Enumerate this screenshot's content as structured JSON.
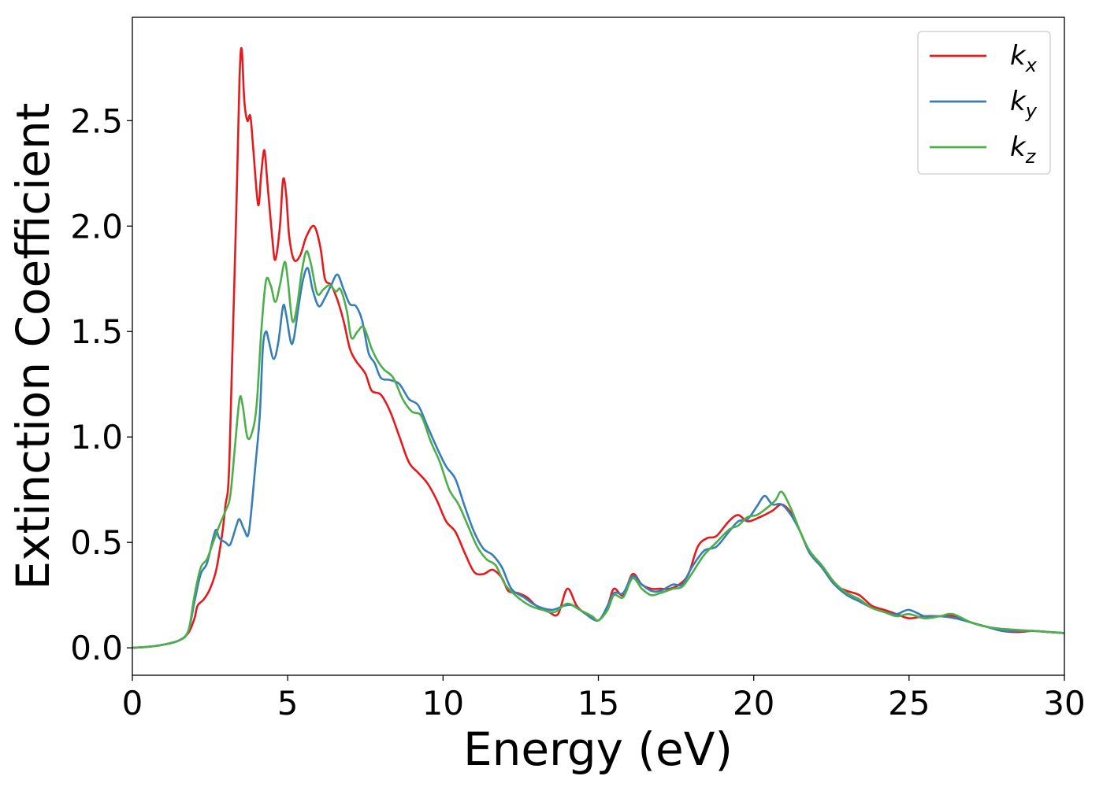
{
  "chart_data": {
    "type": "line",
    "xlabel": "Energy (eV)",
    "ylabel": "Extinction Coefficient",
    "xlim": [
      0,
      30
    ],
    "ylim": [
      -0.13,
      2.99
    ],
    "xticks": [
      "0",
      "5",
      "10",
      "15",
      "20",
      "25",
      "30"
    ],
    "yticks": [
      "0.0",
      "0.5",
      "1.0",
      "1.5",
      "2.0",
      "2.5"
    ],
    "grid": false,
    "legend_position": "top-right",
    "series": [
      {
        "name": "k_x",
        "legend_main": "k",
        "legend_sub": "x",
        "color": "#e41a1c",
        "points": [
          [
            0,
            0
          ],
          [
            0.5,
            0.005
          ],
          [
            1,
            0.015
          ],
          [
            1.5,
            0.035
          ],
          [
            1.8,
            0.07
          ],
          [
            2.0,
            0.14
          ],
          [
            2.1,
            0.2
          ],
          [
            2.3,
            0.23
          ],
          [
            2.5,
            0.28
          ],
          [
            2.7,
            0.37
          ],
          [
            2.9,
            0.55
          ],
          [
            3.0,
            0.68
          ],
          [
            3.1,
            0.8
          ],
          [
            3.2,
            1.3
          ],
          [
            3.35,
            2.1
          ],
          [
            3.45,
            2.7
          ],
          [
            3.52,
            2.84
          ],
          [
            3.6,
            2.6
          ],
          [
            3.7,
            2.5
          ],
          [
            3.8,
            2.52
          ],
          [
            3.9,
            2.35
          ],
          [
            4.05,
            2.1
          ],
          [
            4.15,
            2.25
          ],
          [
            4.25,
            2.36
          ],
          [
            4.35,
            2.2
          ],
          [
            4.5,
            1.95
          ],
          [
            4.6,
            1.84
          ],
          [
            4.75,
            2.0
          ],
          [
            4.85,
            2.22
          ],
          [
            4.95,
            2.15
          ],
          [
            5.05,
            1.95
          ],
          [
            5.2,
            1.84
          ],
          [
            5.4,
            1.86
          ],
          [
            5.6,
            1.95
          ],
          [
            5.85,
            2.0
          ],
          [
            6.05,
            1.9
          ],
          [
            6.2,
            1.75
          ],
          [
            6.4,
            1.72
          ],
          [
            6.6,
            1.65
          ],
          [
            6.8,
            1.55
          ],
          [
            7.0,
            1.42
          ],
          [
            7.2,
            1.36
          ],
          [
            7.5,
            1.3
          ],
          [
            7.7,
            1.22
          ],
          [
            8.0,
            1.2
          ],
          [
            8.3,
            1.12
          ],
          [
            8.6,
            1.0
          ],
          [
            8.9,
            0.88
          ],
          [
            9.2,
            0.83
          ],
          [
            9.5,
            0.78
          ],
          [
            9.8,
            0.7
          ],
          [
            10.1,
            0.6
          ],
          [
            10.4,
            0.55
          ],
          [
            10.7,
            0.45
          ],
          [
            11.0,
            0.36
          ],
          [
            11.3,
            0.35
          ],
          [
            11.6,
            0.37
          ],
          [
            11.9,
            0.33
          ],
          [
            12.1,
            0.27
          ],
          [
            12.4,
            0.26
          ],
          [
            12.7,
            0.24
          ],
          [
            13.0,
            0.2
          ],
          [
            13.4,
            0.17
          ],
          [
            13.7,
            0.16
          ],
          [
            14.0,
            0.28
          ],
          [
            14.3,
            0.2
          ],
          [
            14.6,
            0.16
          ],
          [
            15.0,
            0.13
          ],
          [
            15.3,
            0.2
          ],
          [
            15.5,
            0.28
          ],
          [
            15.8,
            0.25
          ],
          [
            16.1,
            0.35
          ],
          [
            16.4,
            0.3
          ],
          [
            16.7,
            0.28
          ],
          [
            17.0,
            0.28
          ],
          [
            17.3,
            0.28
          ],
          [
            17.6,
            0.3
          ],
          [
            17.9,
            0.35
          ],
          [
            18.2,
            0.48
          ],
          [
            18.5,
            0.52
          ],
          [
            18.8,
            0.53
          ],
          [
            19.2,
            0.6
          ],
          [
            19.5,
            0.63
          ],
          [
            19.8,
            0.6
          ],
          [
            20.2,
            0.62
          ],
          [
            20.6,
            0.65
          ],
          [
            20.9,
            0.68
          ],
          [
            21.2,
            0.64
          ],
          [
            21.5,
            0.55
          ],
          [
            21.8,
            0.45
          ],
          [
            22.2,
            0.38
          ],
          [
            22.6,
            0.3
          ],
          [
            23.0,
            0.27
          ],
          [
            23.4,
            0.25
          ],
          [
            23.8,
            0.2
          ],
          [
            24.2,
            0.18
          ],
          [
            24.6,
            0.16
          ],
          [
            25.0,
            0.14
          ],
          [
            25.5,
            0.15
          ],
          [
            26.0,
            0.15
          ],
          [
            26.5,
            0.15
          ],
          [
            27.0,
            0.12
          ],
          [
            27.5,
            0.1
          ],
          [
            28.0,
            0.08
          ],
          [
            28.5,
            0.075
          ],
          [
            29.0,
            0.08
          ],
          [
            29.5,
            0.075
          ],
          [
            30,
            0.07
          ]
        ]
      },
      {
        "name": "k_y",
        "legend_main": "k",
        "legend_sub": "y",
        "color": "#377eb8",
        "points": [
          [
            0,
            0
          ],
          [
            0.5,
            0.005
          ],
          [
            1,
            0.015
          ],
          [
            1.5,
            0.035
          ],
          [
            1.8,
            0.08
          ],
          [
            2.0,
            0.22
          ],
          [
            2.2,
            0.35
          ],
          [
            2.4,
            0.4
          ],
          [
            2.6,
            0.52
          ],
          [
            2.7,
            0.56
          ],
          [
            2.8,
            0.52
          ],
          [
            3.0,
            0.5
          ],
          [
            3.15,
            0.49
          ],
          [
            3.35,
            0.58
          ],
          [
            3.45,
            0.61
          ],
          [
            3.6,
            0.56
          ],
          [
            3.75,
            0.55
          ],
          [
            3.95,
            0.85
          ],
          [
            4.1,
            1.1
          ],
          [
            4.2,
            1.42
          ],
          [
            4.3,
            1.5
          ],
          [
            4.4,
            1.45
          ],
          [
            4.55,
            1.37
          ],
          [
            4.7,
            1.45
          ],
          [
            4.85,
            1.62
          ],
          [
            4.95,
            1.58
          ],
          [
            5.1,
            1.45
          ],
          [
            5.2,
            1.47
          ],
          [
            5.35,
            1.62
          ],
          [
            5.5,
            1.75
          ],
          [
            5.65,
            1.8
          ],
          [
            5.8,
            1.7
          ],
          [
            6.0,
            1.62
          ],
          [
            6.2,
            1.66
          ],
          [
            6.4,
            1.72
          ],
          [
            6.6,
            1.77
          ],
          [
            6.8,
            1.7
          ],
          [
            7.0,
            1.63
          ],
          [
            7.2,
            1.62
          ],
          [
            7.4,
            1.55
          ],
          [
            7.6,
            1.4
          ],
          [
            7.8,
            1.35
          ],
          [
            8.0,
            1.28
          ],
          [
            8.3,
            1.27
          ],
          [
            8.6,
            1.25
          ],
          [
            8.9,
            1.18
          ],
          [
            9.2,
            1.15
          ],
          [
            9.5,
            1.05
          ],
          [
            9.8,
            0.95
          ],
          [
            10.1,
            0.86
          ],
          [
            10.4,
            0.8
          ],
          [
            10.7,
            0.67
          ],
          [
            11.0,
            0.55
          ],
          [
            11.3,
            0.47
          ],
          [
            11.6,
            0.44
          ],
          [
            11.9,
            0.38
          ],
          [
            12.2,
            0.28
          ],
          [
            12.6,
            0.24
          ],
          [
            13.0,
            0.2
          ],
          [
            13.5,
            0.18
          ],
          [
            13.9,
            0.2
          ],
          [
            14.2,
            0.2
          ],
          [
            14.6,
            0.16
          ],
          [
            15.0,
            0.13
          ],
          [
            15.3,
            0.2
          ],
          [
            15.5,
            0.26
          ],
          [
            15.8,
            0.26
          ],
          [
            16.1,
            0.34
          ],
          [
            16.4,
            0.3
          ],
          [
            16.7,
            0.27
          ],
          [
            17.0,
            0.27
          ],
          [
            17.4,
            0.3
          ],
          [
            17.7,
            0.3
          ],
          [
            18.0,
            0.38
          ],
          [
            18.4,
            0.46
          ],
          [
            18.8,
            0.48
          ],
          [
            19.2,
            0.55
          ],
          [
            19.5,
            0.6
          ],
          [
            19.8,
            0.61
          ],
          [
            20.1,
            0.67
          ],
          [
            20.35,
            0.72
          ],
          [
            20.6,
            0.68
          ],
          [
            20.9,
            0.68
          ],
          [
            21.2,
            0.63
          ],
          [
            21.5,
            0.55
          ],
          [
            21.8,
            0.45
          ],
          [
            22.2,
            0.38
          ],
          [
            22.6,
            0.3
          ],
          [
            23.0,
            0.25
          ],
          [
            23.4,
            0.22
          ],
          [
            23.8,
            0.19
          ],
          [
            24.2,
            0.17
          ],
          [
            24.6,
            0.16
          ],
          [
            25.0,
            0.18
          ],
          [
            25.5,
            0.15
          ],
          [
            26.0,
            0.15
          ],
          [
            26.5,
            0.14
          ],
          [
            27.0,
            0.12
          ],
          [
            27.5,
            0.1
          ],
          [
            28.0,
            0.08
          ],
          [
            28.5,
            0.08
          ],
          [
            29.0,
            0.08
          ],
          [
            29.5,
            0.075
          ],
          [
            30,
            0.07
          ]
        ]
      },
      {
        "name": "k_z",
        "legend_main": "k",
        "legend_sub": "z",
        "color": "#4daf4a",
        "points": [
          [
            0,
            0
          ],
          [
            0.5,
            0.005
          ],
          [
            1,
            0.015
          ],
          [
            1.5,
            0.035
          ],
          [
            1.8,
            0.08
          ],
          [
            2.0,
            0.25
          ],
          [
            2.2,
            0.38
          ],
          [
            2.4,
            0.42
          ],
          [
            2.6,
            0.5
          ],
          [
            2.8,
            0.58
          ],
          [
            3.0,
            0.65
          ],
          [
            3.15,
            0.72
          ],
          [
            3.3,
            0.95
          ],
          [
            3.45,
            1.18
          ],
          [
            3.55,
            1.15
          ],
          [
            3.7,
            1.0
          ],
          [
            3.85,
            1.02
          ],
          [
            4.0,
            1.15
          ],
          [
            4.15,
            1.5
          ],
          [
            4.3,
            1.74
          ],
          [
            4.45,
            1.72
          ],
          [
            4.6,
            1.64
          ],
          [
            4.75,
            1.72
          ],
          [
            4.9,
            1.83
          ],
          [
            5.0,
            1.75
          ],
          [
            5.15,
            1.55
          ],
          [
            5.3,
            1.62
          ],
          [
            5.45,
            1.78
          ],
          [
            5.6,
            1.88
          ],
          [
            5.75,
            1.82
          ],
          [
            5.95,
            1.68
          ],
          [
            6.15,
            1.7
          ],
          [
            6.35,
            1.72
          ],
          [
            6.55,
            1.69
          ],
          [
            6.7,
            1.7
          ],
          [
            6.9,
            1.6
          ],
          [
            7.05,
            1.47
          ],
          [
            7.25,
            1.5
          ],
          [
            7.45,
            1.52
          ],
          [
            7.7,
            1.42
          ],
          [
            7.9,
            1.36
          ],
          [
            8.1,
            1.32
          ],
          [
            8.4,
            1.28
          ],
          [
            8.7,
            1.18
          ],
          [
            9.0,
            1.12
          ],
          [
            9.3,
            1.1
          ],
          [
            9.6,
            0.98
          ],
          [
            9.9,
            0.88
          ],
          [
            10.2,
            0.75
          ],
          [
            10.5,
            0.68
          ],
          [
            10.8,
            0.58
          ],
          [
            11.1,
            0.48
          ],
          [
            11.4,
            0.42
          ],
          [
            11.7,
            0.39
          ],
          [
            12.0,
            0.3
          ],
          [
            12.4,
            0.24
          ],
          [
            12.8,
            0.2
          ],
          [
            13.2,
            0.18
          ],
          [
            13.6,
            0.17
          ],
          [
            14.0,
            0.21
          ],
          [
            14.4,
            0.18
          ],
          [
            14.8,
            0.15
          ],
          [
            15.0,
            0.13
          ],
          [
            15.3,
            0.18
          ],
          [
            15.5,
            0.25
          ],
          [
            15.8,
            0.24
          ],
          [
            16.1,
            0.33
          ],
          [
            16.4,
            0.28
          ],
          [
            16.7,
            0.25
          ],
          [
            17.0,
            0.26
          ],
          [
            17.4,
            0.28
          ],
          [
            17.7,
            0.29
          ],
          [
            18.0,
            0.35
          ],
          [
            18.4,
            0.44
          ],
          [
            18.8,
            0.5
          ],
          [
            19.2,
            0.56
          ],
          [
            19.5,
            0.58
          ],
          [
            19.8,
            0.62
          ],
          [
            20.1,
            0.63
          ],
          [
            20.4,
            0.66
          ],
          [
            20.7,
            0.7
          ],
          [
            20.9,
            0.74
          ],
          [
            21.2,
            0.66
          ],
          [
            21.5,
            0.55
          ],
          [
            21.8,
            0.46
          ],
          [
            22.2,
            0.39
          ],
          [
            22.6,
            0.31
          ],
          [
            23.0,
            0.26
          ],
          [
            23.4,
            0.23
          ],
          [
            23.8,
            0.19
          ],
          [
            24.2,
            0.17
          ],
          [
            24.6,
            0.15
          ],
          [
            25.0,
            0.16
          ],
          [
            25.5,
            0.14
          ],
          [
            26.0,
            0.15
          ],
          [
            26.4,
            0.16
          ],
          [
            27.0,
            0.12
          ],
          [
            27.5,
            0.1
          ],
          [
            28.0,
            0.09
          ],
          [
            28.5,
            0.085
          ],
          [
            29.0,
            0.08
          ],
          [
            29.5,
            0.075
          ],
          [
            30,
            0.07
          ]
        ]
      }
    ]
  }
}
